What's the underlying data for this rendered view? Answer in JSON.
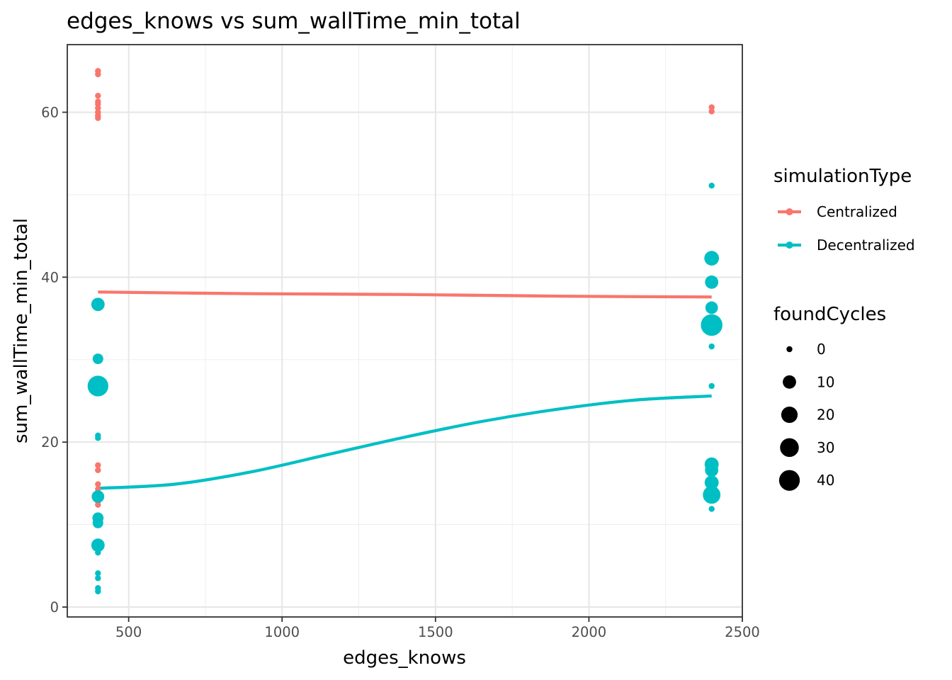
{
  "chart_data": {
    "type": "scatter",
    "title": "edges_knows  vs  sum_wallTime_min_total",
    "xlabel": "edges_knows",
    "ylabel": "sum_wallTime_min_total",
    "xlim": [
      300,
      2500
    ],
    "ylim": [
      -1.2,
      68.2
    ],
    "x_ticks": [
      500,
      1000,
      1500,
      2000,
      2500
    ],
    "y_ticks": [
      0,
      20,
      40,
      60
    ],
    "x_tick_labels": [
      "500",
      "1000",
      "1500",
      "2000",
      "2500"
    ],
    "y_tick_labels": [
      "0",
      "20",
      "40",
      "60"
    ],
    "grid": true,
    "legend_position": "right",
    "legends": {
      "color": {
        "title": "simulationType",
        "entries": [
          {
            "label": "Centralized",
            "color": "#F8766D"
          },
          {
            "label": "Decentralized",
            "color": "#00BFC4"
          }
        ]
      },
      "size": {
        "title": "foundCycles",
        "entries": [
          {
            "label": "0",
            "value": 0
          },
          {
            "label": "10",
            "value": 10
          },
          {
            "label": "20",
            "value": 20
          },
          {
            "label": "30",
            "value": 30
          },
          {
            "label": "40",
            "value": 40
          }
        ]
      }
    },
    "series": [
      {
        "name": "Centralized",
        "color": "#F8766D",
        "points": [
          {
            "x": 400,
            "y": 65.0,
            "foundCycles": 0
          },
          {
            "x": 400,
            "y": 64.6,
            "foundCycles": 0
          },
          {
            "x": 400,
            "y": 62.0,
            "foundCycles": 0
          },
          {
            "x": 400,
            "y": 61.3,
            "foundCycles": 0
          },
          {
            "x": 400,
            "y": 61.0,
            "foundCycles": 0
          },
          {
            "x": 400,
            "y": 60.5,
            "foundCycles": 0
          },
          {
            "x": 400,
            "y": 60.0,
            "foundCycles": 0
          },
          {
            "x": 400,
            "y": 59.6,
            "foundCycles": 0
          },
          {
            "x": 400,
            "y": 59.3,
            "foundCycles": 0
          },
          {
            "x": 400,
            "y": 17.2,
            "foundCycles": 0
          },
          {
            "x": 400,
            "y": 16.6,
            "foundCycles": 0
          },
          {
            "x": 400,
            "y": 14.9,
            "foundCycles": 0
          },
          {
            "x": 400,
            "y": 14.3,
            "foundCycles": 0
          },
          {
            "x": 400,
            "y": 13.8,
            "foundCycles": 0
          },
          {
            "x": 400,
            "y": 13.3,
            "foundCycles": 0
          },
          {
            "x": 400,
            "y": 12.8,
            "foundCycles": 0
          },
          {
            "x": 400,
            "y": 12.4,
            "foundCycles": 0
          },
          {
            "x": 2400,
            "y": 60.6,
            "foundCycles": 0
          },
          {
            "x": 2400,
            "y": 60.1,
            "foundCycles": 0
          },
          {
            "x": 2400,
            "y": 16.9,
            "foundCycles": 0
          },
          {
            "x": 2400,
            "y": 13.2,
            "foundCycles": 0
          }
        ],
        "smooth": {
          "x": [
            400,
            900,
            1400,
            1900,
            2400
          ],
          "y": [
            38.2,
            38.0,
            37.9,
            37.7,
            37.6
          ]
        }
      },
      {
        "name": "Decentralized",
        "color": "#00BFC4",
        "points": [
          {
            "x": 400,
            "y": 36.7,
            "foundCycles": 10
          },
          {
            "x": 400,
            "y": 30.1,
            "foundCycles": 4
          },
          {
            "x": 400,
            "y": 26.8,
            "foundCycles": 40
          },
          {
            "x": 400,
            "y": 20.8,
            "foundCycles": 0
          },
          {
            "x": 400,
            "y": 20.5,
            "foundCycles": 0
          },
          {
            "x": 400,
            "y": 13.4,
            "foundCycles": 8
          },
          {
            "x": 400,
            "y": 10.8,
            "foundCycles": 5
          },
          {
            "x": 400,
            "y": 10.2,
            "foundCycles": 4
          },
          {
            "x": 400,
            "y": 7.5,
            "foundCycles": 10
          },
          {
            "x": 400,
            "y": 6.6,
            "foundCycles": 0
          },
          {
            "x": 400,
            "y": 4.1,
            "foundCycles": 0
          },
          {
            "x": 400,
            "y": 3.5,
            "foundCycles": 0
          },
          {
            "x": 400,
            "y": 2.3,
            "foundCycles": 0
          },
          {
            "x": 400,
            "y": 1.9,
            "foundCycles": 0
          },
          {
            "x": 2400,
            "y": 51.1,
            "foundCycles": 0
          },
          {
            "x": 2400,
            "y": 42.3,
            "foundCycles": 14
          },
          {
            "x": 2400,
            "y": 39.4,
            "foundCycles": 10
          },
          {
            "x": 2400,
            "y": 36.3,
            "foundCycles": 8
          },
          {
            "x": 2400,
            "y": 34.2,
            "foundCycles": 45
          },
          {
            "x": 2400,
            "y": 31.6,
            "foundCycles": 0
          },
          {
            "x": 2400,
            "y": 26.8,
            "foundCycles": 0
          },
          {
            "x": 2400,
            "y": 17.3,
            "foundCycles": 12
          },
          {
            "x": 2400,
            "y": 16.6,
            "foundCycles": 10
          },
          {
            "x": 2400,
            "y": 15.1,
            "foundCycles": 12
          },
          {
            "x": 2400,
            "y": 13.6,
            "foundCycles": 25
          },
          {
            "x": 2400,
            "y": 11.9,
            "foundCycles": 0
          }
        ],
        "smooth": {
          "x": [
            400,
            650,
            900,
            1150,
            1400,
            1650,
            1900,
            2150,
            2400
          ],
          "y": [
            14.4,
            14.9,
            16.4,
            18.5,
            20.6,
            22.5,
            24.0,
            25.1,
            25.6
          ]
        }
      }
    ]
  }
}
